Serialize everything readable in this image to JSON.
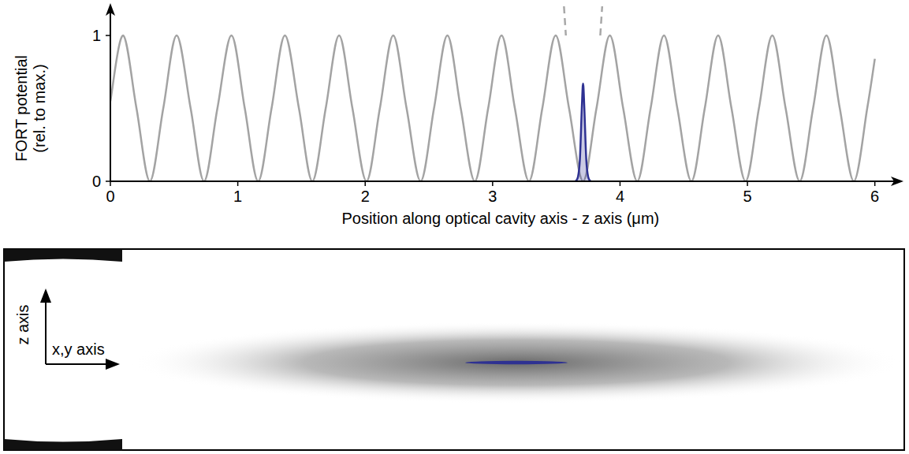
{
  "chart_data": {
    "type": "line",
    "xlabel": "Position along optical cavity axis - z axis (μm)",
    "ylabel": "FORT potential (rel. to max.)",
    "xlim": [
      0,
      6.2
    ],
    "ylim": [
      0,
      1.2
    ],
    "xticks": [
      0,
      1,
      2,
      3,
      4,
      5,
      6
    ],
    "yticks": [
      0,
      1
    ],
    "grid": false,
    "series": [
      {
        "type": "line",
        "color": "#a3a3a3",
        "line_style": "solid",
        "x": [
          0,
          0.1,
          0.205,
          0.31,
          0.415,
          0.52,
          0.63,
          0.735,
          0.84,
          0.95,
          1.055,
          1.16,
          1.265,
          1.37,
          1.48,
          1.585,
          1.69,
          1.795,
          1.9,
          2.01,
          2.115,
          2.22,
          2.325,
          2.435,
          2.54,
          2.645,
          2.75,
          2.86,
          2.965,
          3.07,
          3.175,
          3.285,
          3.39,
          3.495,
          3.6,
          3.71,
          3.815,
          3.92,
          4.025,
          4.135,
          4.24,
          4.345,
          4.45,
          4.56,
          4.665,
          4.77,
          4.875,
          4.985,
          5.09,
          5.195,
          5.3,
          5.41,
          5.515,
          5.62,
          5.725,
          5.835,
          5.94,
          6.0
        ],
        "values": [
          0.55,
          1,
          0.5,
          0,
          0.5,
          1,
          0.5,
          0,
          0.5,
          1,
          0.5,
          0,
          0.5,
          1,
          0.5,
          0,
          0.5,
          1,
          0.5,
          0,
          0.5,
          1,
          0.5,
          0,
          0.5,
          1,
          0.5,
          0,
          0.5,
          1,
          0.5,
          0,
          0.5,
          1,
          0.5,
          0,
          0.5,
          1,
          0.5,
          0,
          0.5,
          1,
          0.5,
          0,
          0.5,
          1,
          0.5,
          0,
          0.5,
          1,
          0.5,
          0,
          0.5,
          1,
          0.5,
          0,
          0.5,
          0.84
        ]
      },
      {
        "type": "line",
        "color": "#a8a8a8",
        "line_style": "dashed",
        "x": [
          3.56,
          3.575,
          3.71,
          3.845,
          3.86
        ],
        "values": [
          1.2,
          1.0,
          null,
          1.0,
          1.2
        ]
      },
      {
        "type": "area",
        "color": "#2e3192",
        "line_style": "solid",
        "x": [
          3.65,
          3.67,
          3.685,
          3.7,
          3.71,
          3.72,
          3.735,
          3.75,
          3.77
        ],
        "values": [
          0,
          0.03,
          0.15,
          0.5,
          0.67,
          0.5,
          0.15,
          0.03,
          0
        ]
      }
    ]
  },
  "diagram": {
    "z_label": "z axis",
    "xy_label": "x,y axis"
  }
}
